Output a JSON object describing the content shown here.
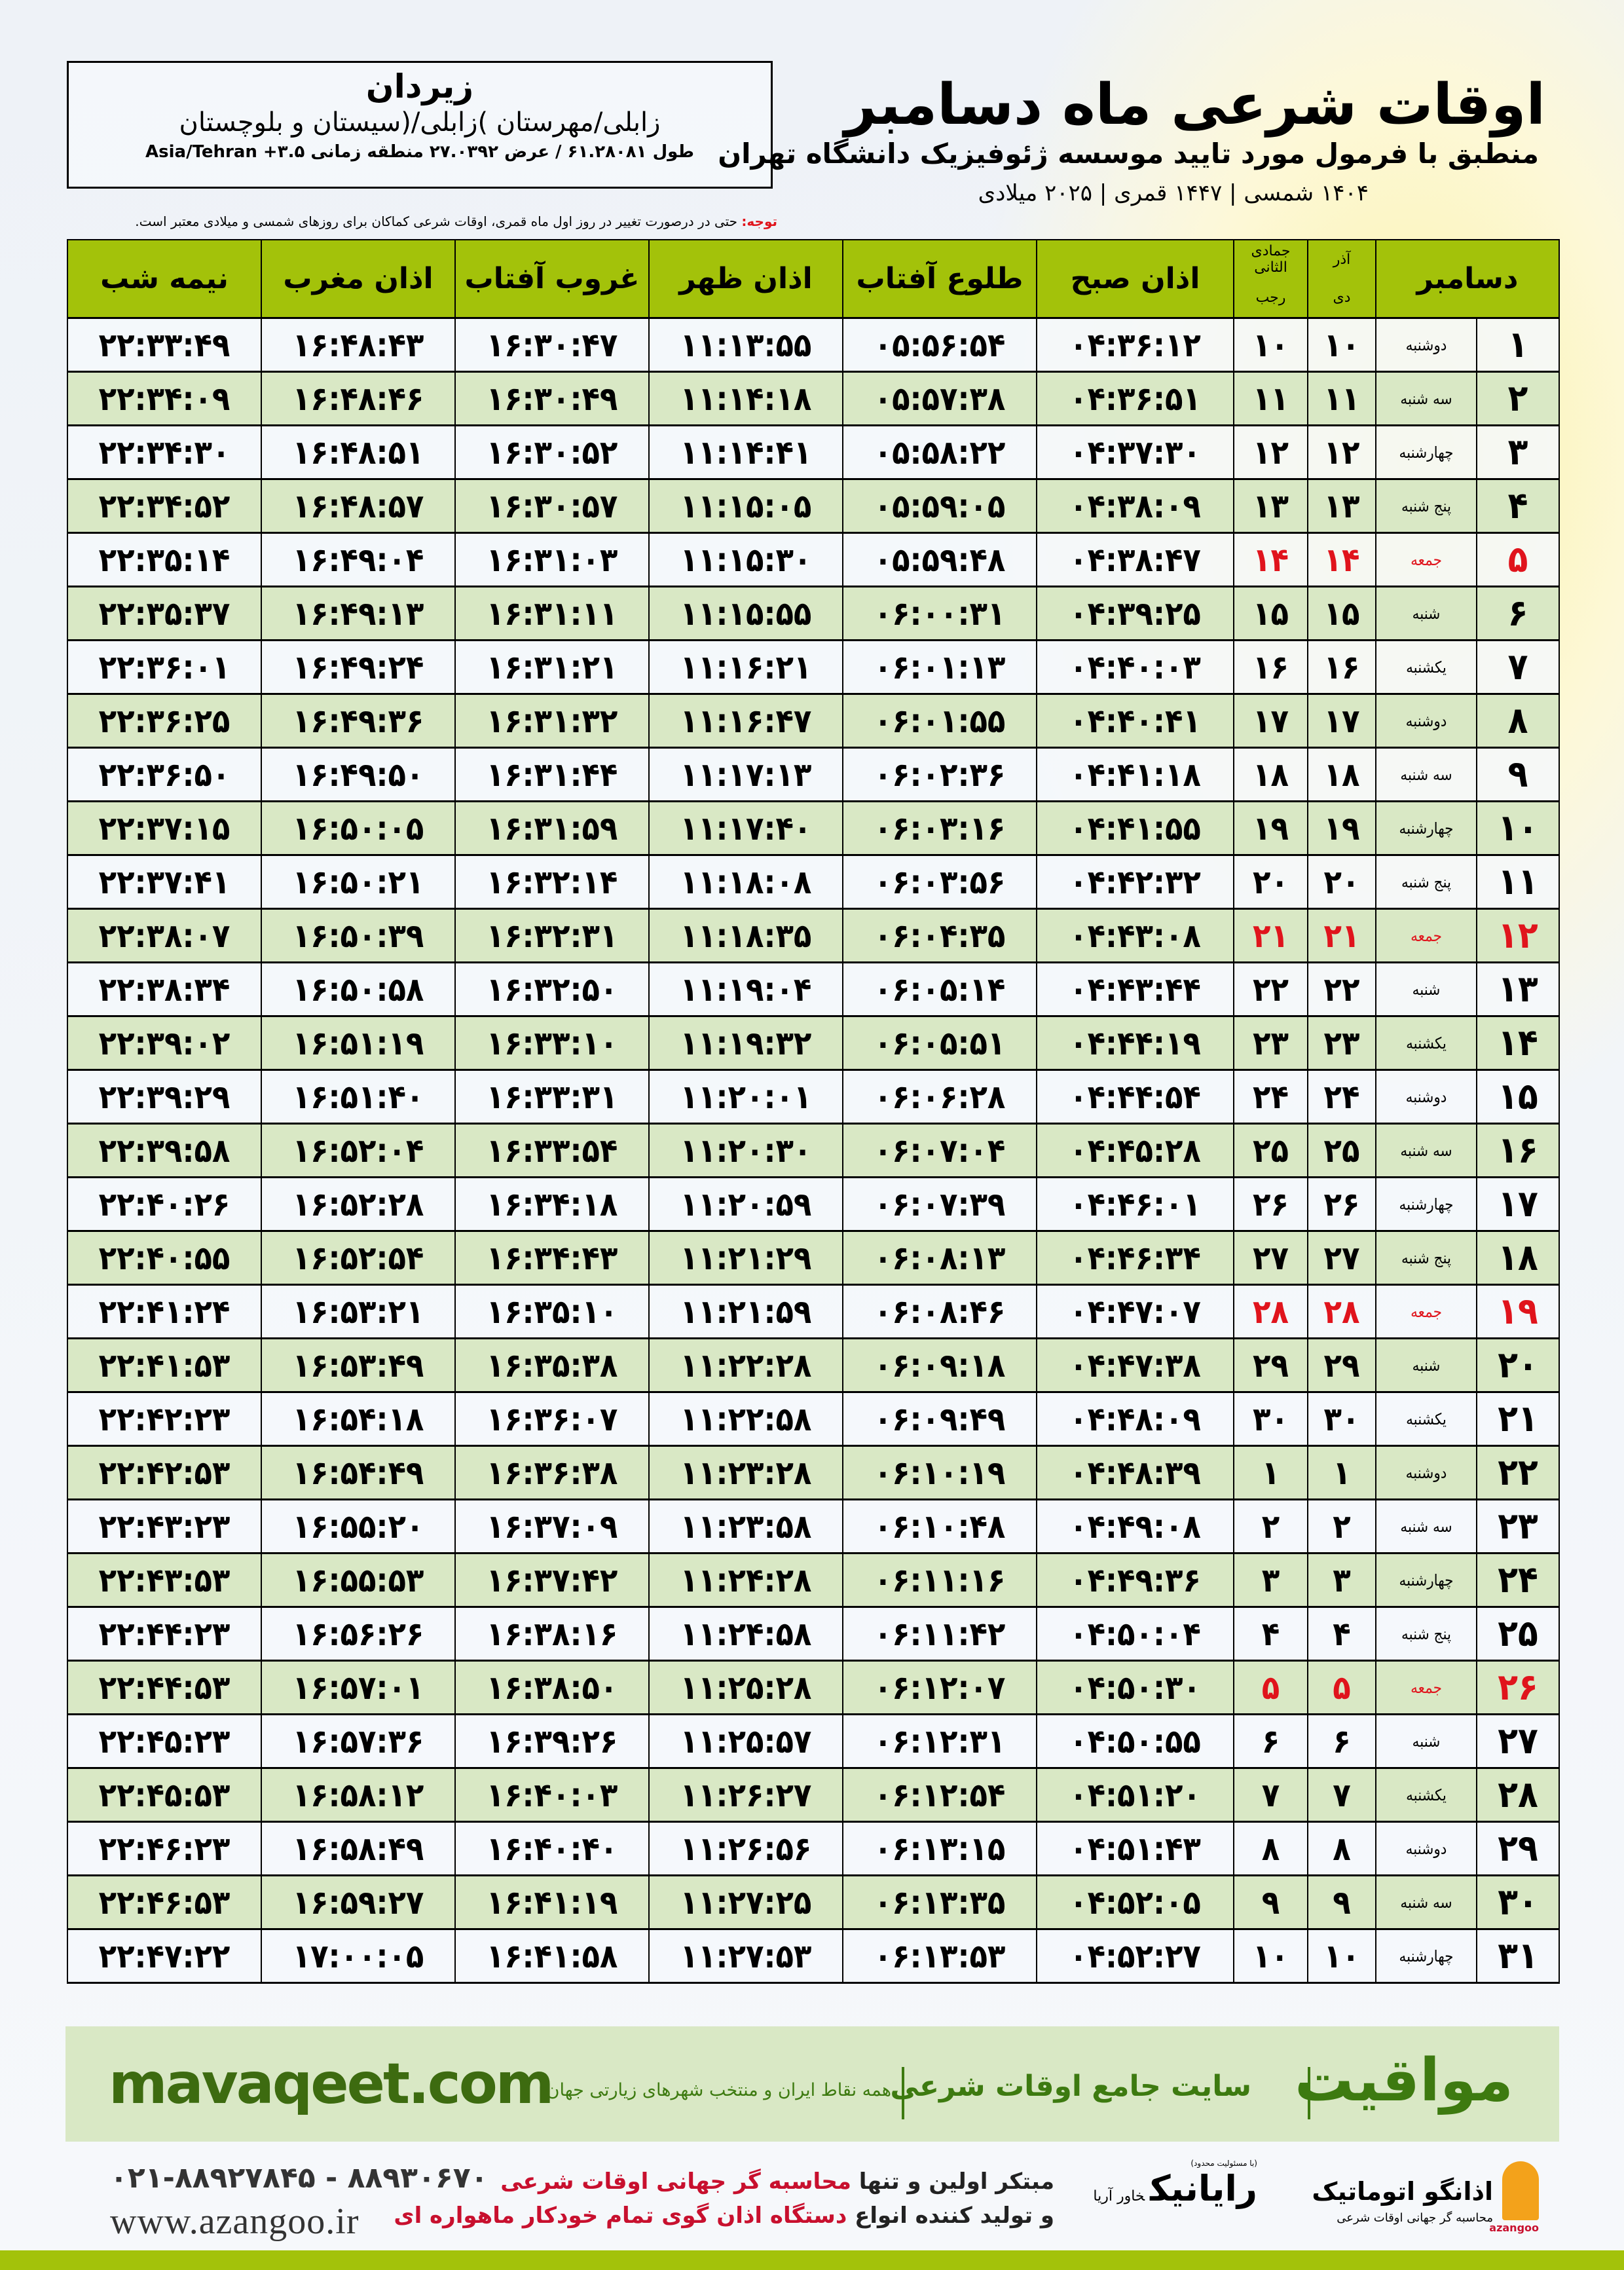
{
  "header": {
    "title": "اوقات شرعی ماه دسامبر",
    "subtitle": "منطبق با فرمول مورد تایید موسسه ژئوفیزیک دانشگاه تهران",
    "dates": "۱۴۰۴ شمسی | ۱۴۴۷ قمری | ۲۰۲۵ میلادی"
  },
  "location": {
    "city": "زیردان",
    "region": "زابلی/مهرستان )زابلی/(سیستان و بلوچستان",
    "coords": "طول ۶۱.۲۸۰۸۱ / عرض ۲۷.۰۳۹۲ منطقه زمانی Asia/Tehran +۳.۵"
  },
  "note": {
    "label": "توجه:",
    "text": " حتی در درصورت تغییر در روز اول ماه قمری، اوقات شرعی کماکان برای روزهای شمسی و میلادی معتبر است."
  },
  "table": {
    "headers": {
      "month": "دسامبر",
      "shamsi_top": "آذر",
      "shamsi_bottom": "دی",
      "qamari_top": "جمادی الثانی",
      "qamari_bottom": "رجب",
      "sobh": "اذان صبح",
      "tolu": "طلوع آفتاب",
      "zohr": "اذان ظهر",
      "ghurub": "غروب آفتاب",
      "maghreb": "اذان مغرب",
      "nimeh": "نیمه شب"
    },
    "friday_color": "#e0141c",
    "header_color": "#a3c20a",
    "rows": [
      [
        "۱",
        "دوشنبه",
        "۱۰",
        "۱۰",
        "۰۴:۳۶:۱۲",
        "۰۵:۵۶:۵۴",
        "۱۱:۱۳:۵۵",
        "۱۶:۳۰:۴۷",
        "۱۶:۴۸:۴۳",
        "۲۲:۳۳:۴۹"
      ],
      [
        "۲",
        "سه شنبه",
        "۱۱",
        "۱۱",
        "۰۴:۳۶:۵۱",
        "۰۵:۵۷:۳۸",
        "۱۱:۱۴:۱۸",
        "۱۶:۳۰:۴۹",
        "۱۶:۴۸:۴۶",
        "۲۲:۳۴:۰۹"
      ],
      [
        "۳",
        "چهارشنبه",
        "۱۲",
        "۱۲",
        "۰۴:۳۷:۳۰",
        "۰۵:۵۸:۲۲",
        "۱۱:۱۴:۴۱",
        "۱۶:۳۰:۵۲",
        "۱۶:۴۸:۵۱",
        "۲۲:۳۴:۳۰"
      ],
      [
        "۴",
        "پنج شنبه",
        "۱۳",
        "۱۳",
        "۰۴:۳۸:۰۹",
        "۰۵:۵۹:۰۵",
        "۱۱:۱۵:۰۵",
        "۱۶:۳۰:۵۷",
        "۱۶:۴۸:۵۷",
        "۲۲:۳۴:۵۲"
      ],
      [
        "۵",
        "جمعه",
        "۱۴",
        "۱۴",
        "۰۴:۳۸:۴۷",
        "۰۵:۵۹:۴۸",
        "۱۱:۱۵:۳۰",
        "۱۶:۳۱:۰۳",
        "۱۶:۴۹:۰۴",
        "۲۲:۳۵:۱۴"
      ],
      [
        "۶",
        "شنبه",
        "۱۵",
        "۱۵",
        "۰۴:۳۹:۲۵",
        "۰۶:۰۰:۳۱",
        "۱۱:۱۵:۵۵",
        "۱۶:۳۱:۱۱",
        "۱۶:۴۹:۱۳",
        "۲۲:۳۵:۳۷"
      ],
      [
        "۷",
        "یکشنبه",
        "۱۶",
        "۱۶",
        "۰۴:۴۰:۰۳",
        "۰۶:۰۱:۱۳",
        "۱۱:۱۶:۲۱",
        "۱۶:۳۱:۲۱",
        "۱۶:۴۹:۲۴",
        "۲۲:۳۶:۰۱"
      ],
      [
        "۸",
        "دوشنبه",
        "۱۷",
        "۱۷",
        "۰۴:۴۰:۴۱",
        "۰۶:۰۱:۵۵",
        "۱۱:۱۶:۴۷",
        "۱۶:۳۱:۳۲",
        "۱۶:۴۹:۳۶",
        "۲۲:۳۶:۲۵"
      ],
      [
        "۹",
        "سه شنبه",
        "۱۸",
        "۱۸",
        "۰۴:۴۱:۱۸",
        "۰۶:۰۲:۳۶",
        "۱۱:۱۷:۱۳",
        "۱۶:۳۱:۴۴",
        "۱۶:۴۹:۵۰",
        "۲۲:۳۶:۵۰"
      ],
      [
        "۱۰",
        "چهارشنبه",
        "۱۹",
        "۱۹",
        "۰۴:۴۱:۵۵",
        "۰۶:۰۳:۱۶",
        "۱۱:۱۷:۴۰",
        "۱۶:۳۱:۵۹",
        "۱۶:۵۰:۰۵",
        "۲۲:۳۷:۱۵"
      ],
      [
        "۱۱",
        "پنج شنبه",
        "۲۰",
        "۲۰",
        "۰۴:۴۲:۳۲",
        "۰۶:۰۳:۵۶",
        "۱۱:۱۸:۰۸",
        "۱۶:۳۲:۱۴",
        "۱۶:۵۰:۲۱",
        "۲۲:۳۷:۴۱"
      ],
      [
        "۱۲",
        "جمعه",
        "۲۱",
        "۲۱",
        "۰۴:۴۳:۰۸",
        "۰۶:۰۴:۳۵",
        "۱۱:۱۸:۳۵",
        "۱۶:۳۲:۳۱",
        "۱۶:۵۰:۳۹",
        "۲۲:۳۸:۰۷"
      ],
      [
        "۱۳",
        "شنبه",
        "۲۲",
        "۲۲",
        "۰۴:۴۳:۴۴",
        "۰۶:۰۵:۱۴",
        "۱۱:۱۹:۰۴",
        "۱۶:۳۲:۵۰",
        "۱۶:۵۰:۵۸",
        "۲۲:۳۸:۳۴"
      ],
      [
        "۱۴",
        "یکشنبه",
        "۲۳",
        "۲۳",
        "۰۴:۴۴:۱۹",
        "۰۶:۰۵:۵۱",
        "۱۱:۱۹:۳۲",
        "۱۶:۳۳:۱۰",
        "۱۶:۵۱:۱۹",
        "۲۲:۳۹:۰۲"
      ],
      [
        "۱۵",
        "دوشنبه",
        "۲۴",
        "۲۴",
        "۰۴:۴۴:۵۴",
        "۰۶:۰۶:۲۸",
        "۱۱:۲۰:۰۱",
        "۱۶:۳۳:۳۱",
        "۱۶:۵۱:۴۰",
        "۲۲:۳۹:۲۹"
      ],
      [
        "۱۶",
        "سه شنبه",
        "۲۵",
        "۲۵",
        "۰۴:۴۵:۲۸",
        "۰۶:۰۷:۰۴",
        "۱۱:۲۰:۳۰",
        "۱۶:۳۳:۵۴",
        "۱۶:۵۲:۰۴",
        "۲۲:۳۹:۵۸"
      ],
      [
        "۱۷",
        "چهارشنبه",
        "۲۶",
        "۲۶",
        "۰۴:۴۶:۰۱",
        "۰۶:۰۷:۳۹",
        "۱۱:۲۰:۵۹",
        "۱۶:۳۴:۱۸",
        "۱۶:۵۲:۲۸",
        "۲۲:۴۰:۲۶"
      ],
      [
        "۱۸",
        "پنج شنبه",
        "۲۷",
        "۲۷",
        "۰۴:۴۶:۳۴",
        "۰۶:۰۸:۱۳",
        "۱۱:۲۱:۲۹",
        "۱۶:۳۴:۴۳",
        "۱۶:۵۲:۵۴",
        "۲۲:۴۰:۵۵"
      ],
      [
        "۱۹",
        "جمعه",
        "۲۸",
        "۲۸",
        "۰۴:۴۷:۰۷",
        "۰۶:۰۸:۴۶",
        "۱۱:۲۱:۵۹",
        "۱۶:۳۵:۱۰",
        "۱۶:۵۳:۲۱",
        "۲۲:۴۱:۲۴"
      ],
      [
        "۲۰",
        "شنبه",
        "۲۹",
        "۲۹",
        "۰۴:۴۷:۳۸",
        "۰۶:۰۹:۱۸",
        "۱۱:۲۲:۲۸",
        "۱۶:۳۵:۳۸",
        "۱۶:۵۳:۴۹",
        "۲۲:۴۱:۵۳"
      ],
      [
        "۲۱",
        "یکشنبه",
        "۳۰",
        "۳۰",
        "۰۴:۴۸:۰۹",
        "۰۶:۰۹:۴۹",
        "۱۱:۲۲:۵۸",
        "۱۶:۳۶:۰۷",
        "۱۶:۵۴:۱۸",
        "۲۲:۴۲:۲۳"
      ],
      [
        "۲۲",
        "دوشنبه",
        "۱",
        "۱",
        "۰۴:۴۸:۳۹",
        "۰۶:۱۰:۱۹",
        "۱۱:۲۳:۲۸",
        "۱۶:۳۶:۳۸",
        "۱۶:۵۴:۴۹",
        "۲۲:۴۲:۵۳"
      ],
      [
        "۲۳",
        "سه شنبه",
        "۲",
        "۲",
        "۰۴:۴۹:۰۸",
        "۰۶:۱۰:۴۸",
        "۱۱:۲۳:۵۸",
        "۱۶:۳۷:۰۹",
        "۱۶:۵۵:۲۰",
        "۲۲:۴۳:۲۳"
      ],
      [
        "۲۴",
        "چهارشنبه",
        "۳",
        "۳",
        "۰۴:۴۹:۳۶",
        "۰۶:۱۱:۱۶",
        "۱۱:۲۴:۲۸",
        "۱۶:۳۷:۴۲",
        "۱۶:۵۵:۵۳",
        "۲۲:۴۳:۵۳"
      ],
      [
        "۲۵",
        "پنج شنبه",
        "۴",
        "۴",
        "۰۴:۵۰:۰۴",
        "۰۶:۱۱:۴۲",
        "۱۱:۲۴:۵۸",
        "۱۶:۳۸:۱۶",
        "۱۶:۵۶:۲۶",
        "۲۲:۴۴:۲۳"
      ],
      [
        "۲۶",
        "جمعه",
        "۵",
        "۵",
        "۰۴:۵۰:۳۰",
        "۰۶:۱۲:۰۷",
        "۱۱:۲۵:۲۸",
        "۱۶:۳۸:۵۰",
        "۱۶:۵۷:۰۱",
        "۲۲:۴۴:۵۳"
      ],
      [
        "۲۷",
        "شنبه",
        "۶",
        "۶",
        "۰۴:۵۰:۵۵",
        "۰۶:۱۲:۳۱",
        "۱۱:۲۵:۵۷",
        "۱۶:۳۹:۲۶",
        "۱۶:۵۷:۳۶",
        "۲۲:۴۵:۲۳"
      ],
      [
        "۲۸",
        "یکشنبه",
        "۷",
        "۷",
        "۰۴:۵۱:۲۰",
        "۰۶:۱۲:۵۴",
        "۱۱:۲۶:۲۷",
        "۱۶:۴۰:۰۳",
        "۱۶:۵۸:۱۲",
        "۲۲:۴۵:۵۳"
      ],
      [
        "۲۹",
        "دوشنبه",
        "۸",
        "۸",
        "۰۴:۵۱:۴۳",
        "۰۶:۱۳:۱۵",
        "۱۱:۲۶:۵۶",
        "۱۶:۴۰:۴۰",
        "۱۶:۵۸:۴۹",
        "۲۲:۴۶:۲۳"
      ],
      [
        "۳۰",
        "سه شنبه",
        "۹",
        "۹",
        "۰۴:۵۲:۰۵",
        "۰۶:۱۳:۳۵",
        "۱۱:۲۷:۲۵",
        "۱۶:۴۱:۱۹",
        "۱۶:۵۹:۲۷",
        "۲۲:۴۶:۵۳"
      ],
      [
        "۳۱",
        "چهارشنبه",
        "۱۰",
        "۱۰",
        "۰۴:۵۲:۲۷",
        "۰۶:۱۳:۵۳",
        "۱۱:۲۷:۵۳",
        "۱۶:۴۱:۵۸",
        "۱۷:۰۰:۰۵",
        "۲۲:۴۷:۲۲"
      ]
    ]
  },
  "promo": {
    "brand": "مواقیت",
    "tagline": "سایت جامع اوقات شرعی",
    "sub": "همه نقاط ایران و منتخب شهرهای زیارتی جهان",
    "site": "mavaqeet.com"
  },
  "footer": {
    "phone": "۰۲۱-۸۸۹۲۷۸۴۵ - ۸۸۹۳۰۶۷۰",
    "web": "www.azangoo.ir",
    "line1_a": "مبتکر اولین و تنها ",
    "line1_b": "محاسبه گر جهانی اوقات شرعی",
    "line2_a": "و تولید کننده انواع ",
    "line2_b": "دستگاه اذان گوی تمام خودکار ماهواره ای",
    "logo_rayanik": "رایانیک",
    "logo_rayanik_sub": "خاور آریا",
    "logo_rayanik_top": "(با مسئولیت محدود)",
    "logo_azangoo": "اذانگو اتوماتیک",
    "logo_azangoo_sub": "محاسبه گر جهانی اوقات شرعی",
    "logo_azangoo_en": "azangoo"
  }
}
